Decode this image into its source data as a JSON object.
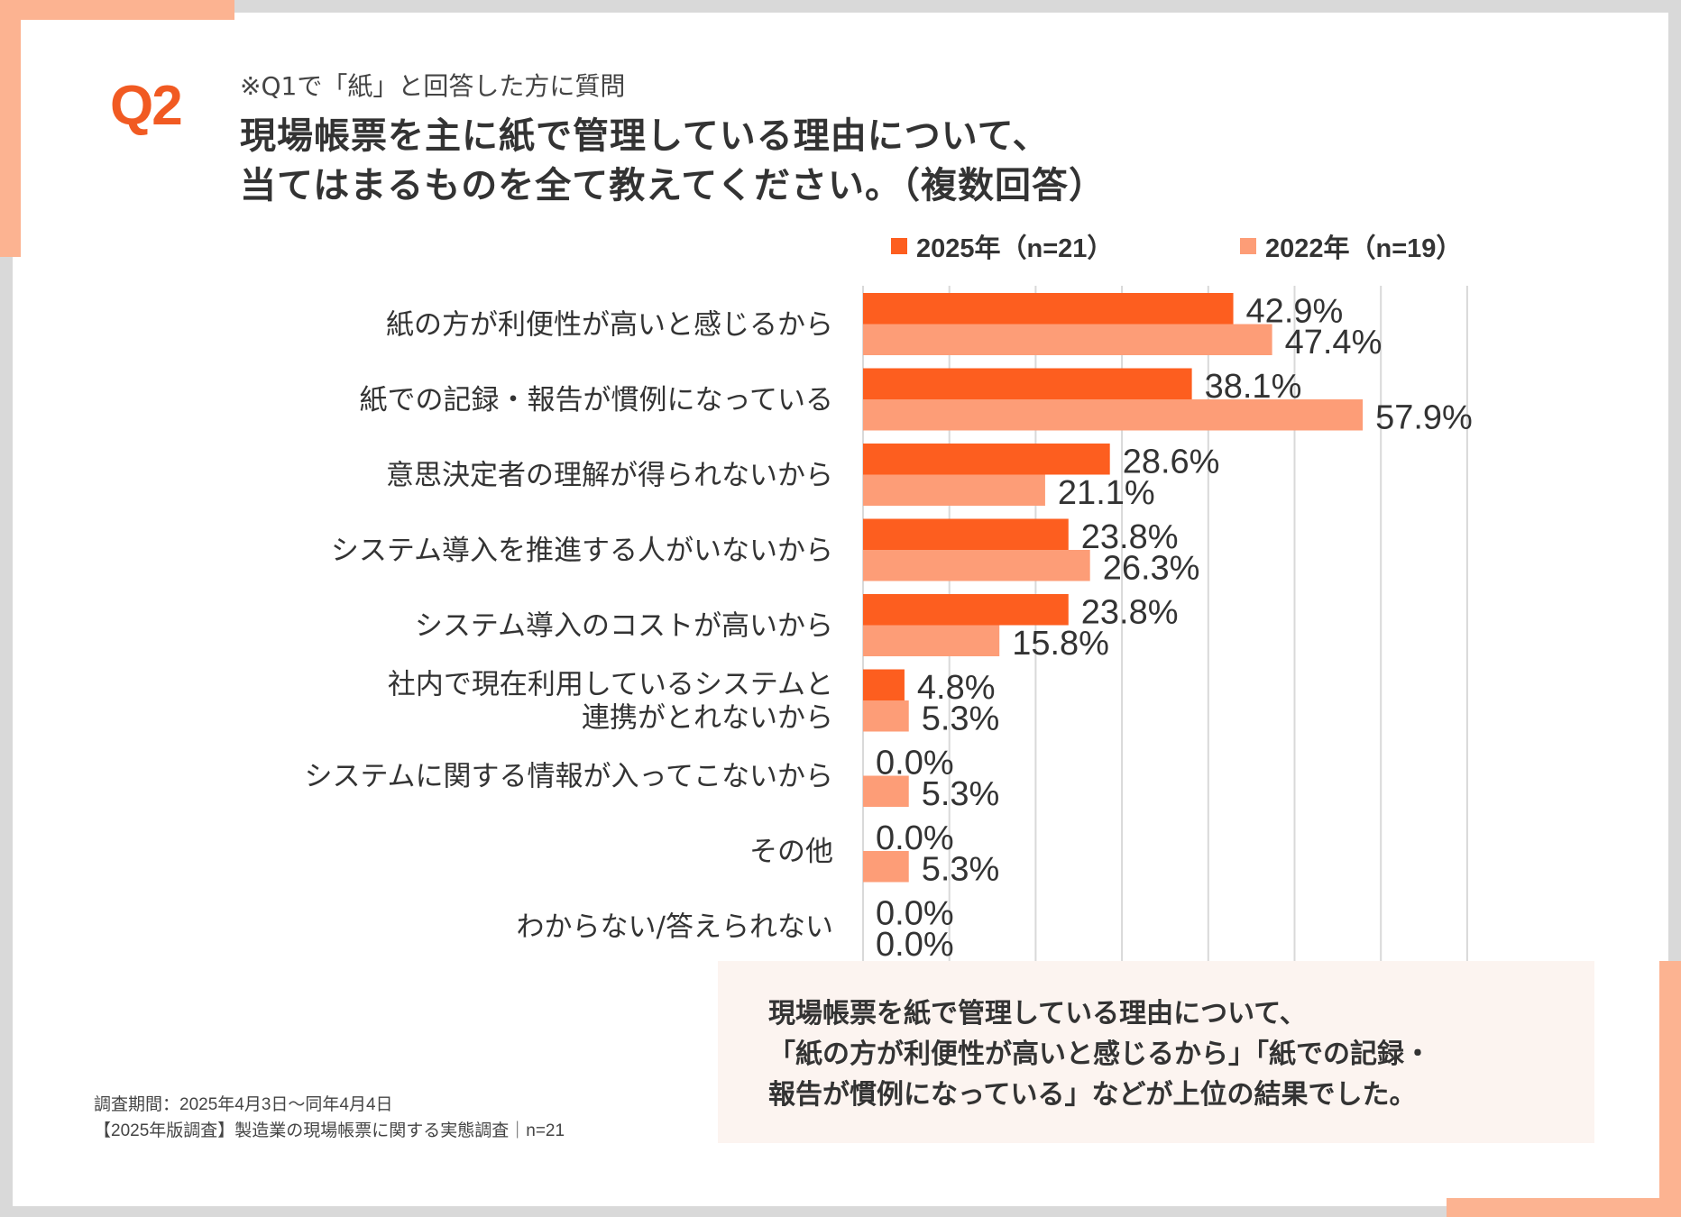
{
  "header": {
    "badge": "Q2",
    "pre_title": "※Q1で「紙」と回答した方に質問",
    "title_lines": [
      "現場帳票を主に紙で管理している理由について、",
      "当てはまるものを全て教えてください。（複数回答）"
    ]
  },
  "colors": {
    "accent": "#f15a22",
    "series_2025": "#fd5e1f",
    "series_2022": "#fd9d77",
    "frame": "#fcb391",
    "grid": "#d9d9d9",
    "summary_bg": "#fcf4f0"
  },
  "chart_data": {
    "type": "bar",
    "orientation": "horizontal",
    "title": "現場帳票を主に紙で管理している理由について、当てはまるものを全て教えてください。（複数回答）",
    "xlabel": "",
    "ylabel": "",
    "xlim": [
      0,
      70
    ],
    "x_unit": "%",
    "grid": true,
    "legend_position": "top-right",
    "categories": [
      [
        "紙の方が利便性が高いと感じるから"
      ],
      [
        "紙での記録・報告が慣例になっている"
      ],
      [
        "意思決定者の理解が得られないから"
      ],
      [
        "システム導入を推進する人がいないから"
      ],
      [
        "システム導入のコストが高いから"
      ],
      [
        "社内で現在利用しているシステムと",
        "連携がとれないから"
      ],
      [
        "システムに関する情報が入ってこないから"
      ],
      [
        "その他"
      ],
      [
        "わからない/答えられない"
      ]
    ],
    "series": [
      {
        "name": "2025年（n=21）",
        "values": [
          42.9,
          38.1,
          28.6,
          23.8,
          23.8,
          4.8,
          0.0,
          0.0,
          0.0
        ],
        "labels": [
          "42.9%",
          "38.1%",
          "28.6%",
          "23.8%",
          "23.8%",
          "4.8%",
          "0.0%",
          "0.0%",
          "0.0%"
        ]
      },
      {
        "name": "2022年（n=19）",
        "values": [
          47.4,
          57.9,
          21.1,
          26.3,
          15.8,
          5.3,
          5.3,
          5.3,
          0.0
        ],
        "labels": [
          "47.4%",
          "57.9%",
          "21.1%",
          "26.3%",
          "15.8%",
          "5.3%",
          "5.3%",
          "5.3%",
          "0.0%"
        ]
      }
    ]
  },
  "summary": {
    "lines": [
      "現場帳票を紙で管理している理由について、",
      "「紙の方が利便性が高いと感じるから」「紙での記録・",
      "報告が慣例になっている」などが上位の結果でした。"
    ]
  },
  "footnote": {
    "period": "調査期間：2025年4月3日～同年4月4日",
    "source": "【2025年版調査】製造業の現場帳票に関する実態調査｜n=21"
  }
}
